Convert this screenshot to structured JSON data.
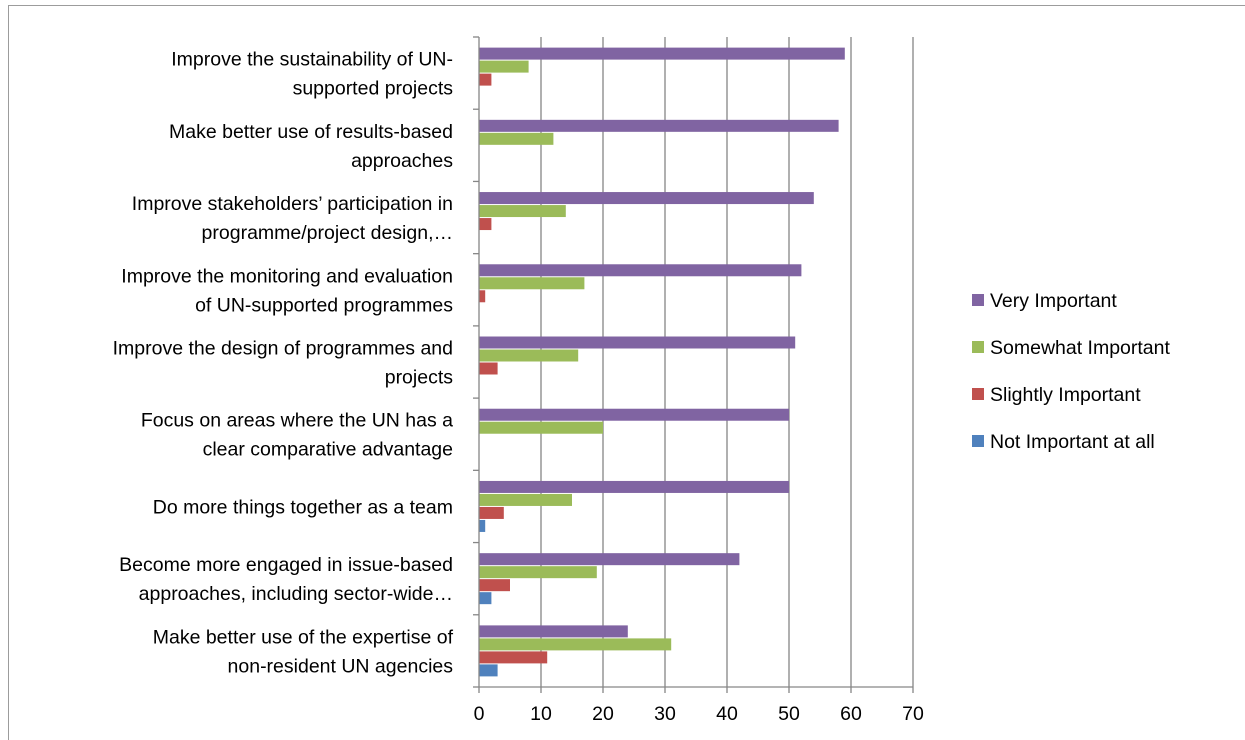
{
  "chart_data": {
    "type": "bar",
    "orientation": "horizontal",
    "title": "",
    "xlabel": "",
    "ylabel": "",
    "xlim": [
      0,
      70
    ],
    "x_ticks": [
      0,
      10,
      20,
      30,
      40,
      50,
      60,
      70
    ],
    "grid": true,
    "legend_position": "right",
    "categories": [
      [
        "Improve the sustainability of UN-",
        "supported projects"
      ],
      [
        "Make better use of results-based",
        "approaches"
      ],
      [
        "Improve stakeholders’ participation in",
        "programme/project design,…"
      ],
      [
        "Improve the monitoring and evaluation",
        "of UN-supported programmes"
      ],
      [
        "Improve the design of programmes and",
        "projects"
      ],
      [
        "Focus on areas where the UN has a",
        "clear comparative advantage"
      ],
      [
        "Do more things together as a team"
      ],
      [
        "Become more engaged in issue-based",
        "approaches, including sector-wide…"
      ],
      [
        "Make better use of the expertise of",
        "non-resident UN agencies"
      ]
    ],
    "series": [
      {
        "name": "Very Important",
        "color": "#8064a2",
        "values": [
          59,
          58,
          54,
          52,
          51,
          50,
          50,
          42,
          24
        ]
      },
      {
        "name": "Somewhat Important",
        "color": "#9bbb59",
        "values": [
          8,
          12,
          14,
          17,
          16,
          20,
          15,
          19,
          31
        ]
      },
      {
        "name": "Slightly Important",
        "color": "#c0504d",
        "values": [
          2,
          0,
          2,
          1,
          3,
          0,
          4,
          5,
          11
        ]
      },
      {
        "name": "Not Important at all",
        "color": "#4f81bd",
        "values": [
          0,
          0,
          0,
          0,
          0,
          0,
          1,
          2,
          3
        ]
      }
    ]
  },
  "colors": {
    "gridline": "#868686",
    "axis": "#868686"
  }
}
